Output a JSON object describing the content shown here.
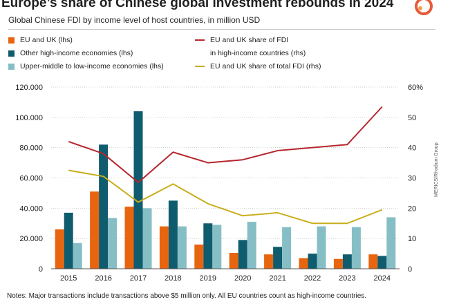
{
  "title": "Europe’s share of Chinese global investment rebounds in 2024",
  "subtitle": "Global Chinese FDI by income level of host countries, in million USD",
  "notes": "Notes: Major transactions include transactions above $5 million only. All EU countries count as high-income countries.",
  "source_side": "MERICS/Rhodium Group",
  "colors": {
    "eu_uk": "#e8650f",
    "other_high": "#0f5c6e",
    "upper_low": "#86bec6",
    "share_high": "#b5252c",
    "share_total": "#c9ae1c",
    "logo_a": "#e85a3a",
    "logo_b": "#f0a050"
  },
  "legend": {
    "eu_uk": "EU and UK (lhs)",
    "other_high": "Other high-income economies (lhs)",
    "upper_low": "Upper-middle to low-income economies (lhs)",
    "share_high_line1": "EU and UK share of FDI",
    "share_high_line2": "in high-income countries (rhs)",
    "share_total": "EU and UK share of total FDI (rhs)"
  },
  "chart_data": {
    "type": "bar",
    "categories": [
      "2015",
      "2016",
      "2017",
      "2018",
      "2019",
      "2020",
      "2021",
      "2022",
      "2023",
      "2024"
    ],
    "left_axis": {
      "ylim": [
        0,
        120000
      ],
      "ticks": [
        "0",
        "20.000",
        "40.000",
        "60.000",
        "80.000",
        "100.000",
        "120.000"
      ]
    },
    "right_axis": {
      "ylim": [
        0,
        60
      ],
      "ticks": [
        "0",
        "10",
        "20",
        "30",
        "40",
        "50",
        "60%"
      ]
    },
    "series": [
      {
        "name": "EU and UK (lhs)",
        "kind": "bar",
        "axis": "left",
        "values": [
          26000,
          51000,
          41000,
          28000,
          16000,
          10500,
          9500,
          7000,
          6500,
          9500
        ]
      },
      {
        "name": "Other high-income economies (lhs)",
        "kind": "bar",
        "axis": "left",
        "values": [
          37000,
          82000,
          104000,
          45000,
          30000,
          19000,
          14500,
          10000,
          9500,
          8500
        ]
      },
      {
        "name": "Upper-middle to low-income economies (lhs)",
        "kind": "bar",
        "axis": "left",
        "values": [
          17000,
          33500,
          40000,
          28000,
          29000,
          31000,
          27500,
          28000,
          27500,
          34000
        ]
      },
      {
        "name": "EU and UK share of FDI in high-income countries (rhs)",
        "kind": "line",
        "axis": "right",
        "values": [
          42,
          38,
          28.5,
          38.5,
          35,
          36,
          39,
          40,
          41,
          53.5
        ]
      },
      {
        "name": "EU and UK share of total FDI (rhs)",
        "kind": "line",
        "axis": "right",
        "values": [
          32.5,
          30.5,
          22,
          28,
          21.5,
          17.5,
          18.5,
          15,
          15,
          19.5
        ]
      }
    ]
  }
}
